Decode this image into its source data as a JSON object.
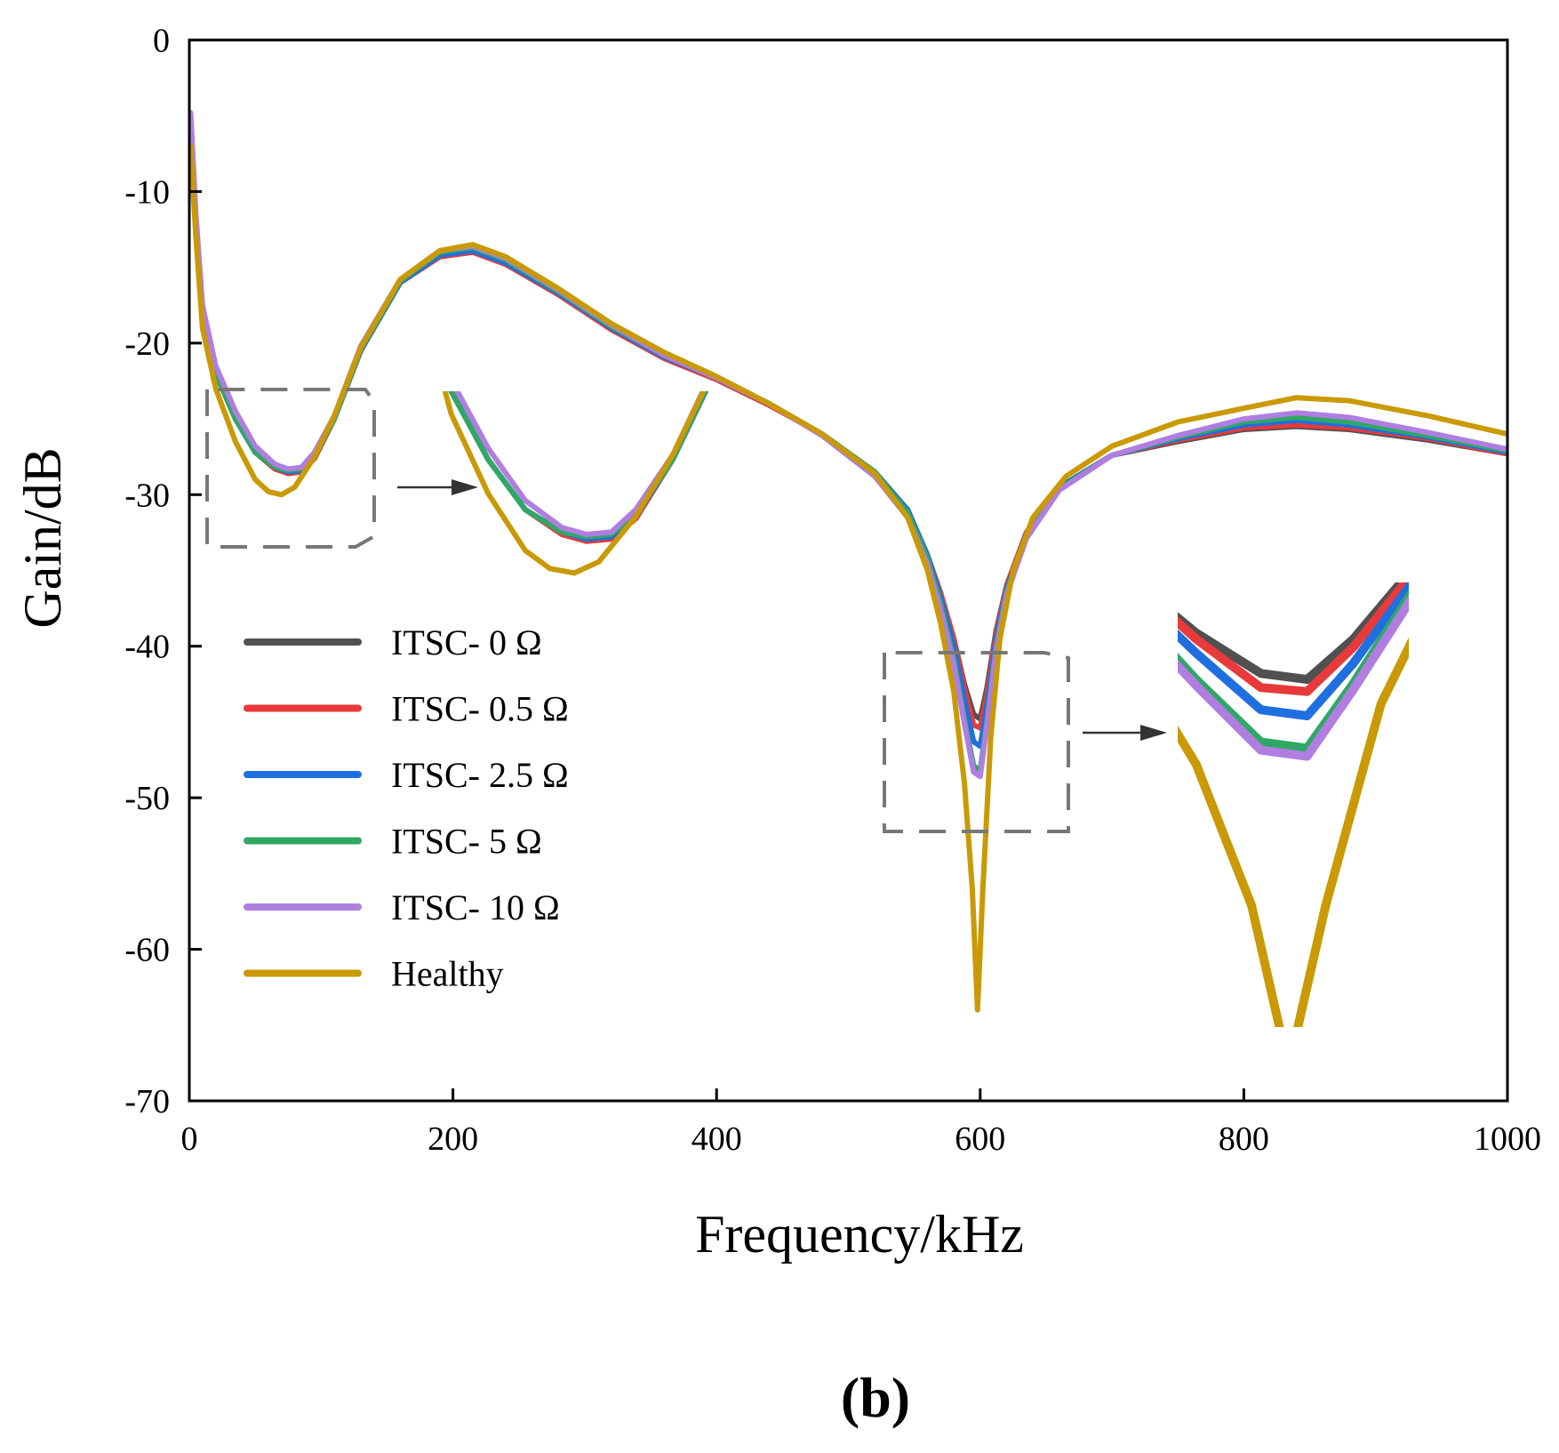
{
  "chart_data": {
    "type": "line",
    "title": "",
    "xlabel": "Frequency/kHz",
    "ylabel": "Gain/dB",
    "panel_label": "(b)",
    "xlim": [
      0,
      1000
    ],
    "ylim": [
      -70,
      0
    ],
    "xticks": [
      0,
      200,
      400,
      600,
      800,
      1000
    ],
    "yticks": [
      0,
      -10,
      -20,
      -30,
      -40,
      -50,
      -60,
      -70
    ],
    "xtick_labels": [
      "0",
      "200",
      "400",
      "600",
      "800",
      "1000"
    ],
    "ytick_labels": [
      "0",
      "-10",
      "-20",
      "-30",
      "-40",
      "-50",
      "-60",
      "-70"
    ],
    "legend_position": "left",
    "grid": false,
    "series": [
      {
        "name": "ITSC- 0 Ω",
        "color": "#505050",
        "x": [
          1,
          5,
          10,
          20,
          35,
          50,
          65,
          75,
          85,
          95,
          110,
          130,
          160,
          190,
          215,
          240,
          280,
          320,
          360,
          400,
          440,
          480,
          520,
          545,
          560,
          570,
          580,
          588,
          595,
          600,
          605,
          612,
          620,
          635,
          660,
          700,
          750,
          800,
          840,
          880,
          940,
          1000
        ],
        "y": [
          -7,
          -12,
          -18,
          -22,
          -25,
          -27.2,
          -28.3,
          -28.6,
          -28.5,
          -27.6,
          -25,
          -20.5,
          -16,
          -14.3,
          -14,
          -14.8,
          -16.8,
          -19.1,
          -21,
          -22.4,
          -24.1,
          -26,
          -28.5,
          -31,
          -34,
          -36.5,
          -39.5,
          -42.5,
          -44.5,
          -44.8,
          -42.8,
          -39,
          -36,
          -32.5,
          -29.5,
          -27.4,
          -26.5,
          -25.7,
          -25.5,
          -25.7,
          -26.4,
          -27.3
        ]
      },
      {
        "name": "ITSC- 0.5 Ω",
        "color": "#e83a3a",
        "x": [
          1,
          5,
          10,
          20,
          35,
          50,
          65,
          75,
          85,
          95,
          110,
          130,
          160,
          190,
          215,
          240,
          280,
          320,
          360,
          400,
          440,
          480,
          520,
          545,
          560,
          570,
          580,
          588,
          595,
          600,
          605,
          612,
          620,
          635,
          660,
          700,
          750,
          800,
          840,
          880,
          940,
          1000
        ],
        "y": [
          -7,
          -12,
          -18,
          -22,
          -25,
          -27.2,
          -28.3,
          -28.6,
          -28.5,
          -27.6,
          -25,
          -20.5,
          -16,
          -14.3,
          -14,
          -14.8,
          -16.8,
          -19.1,
          -21,
          -22.4,
          -24.1,
          -26,
          -28.5,
          -31,
          -34,
          -36.5,
          -39.5,
          -42.8,
          -45.2,
          -45.4,
          -43.2,
          -39.2,
          -36,
          -32.5,
          -29.5,
          -27.4,
          -26.4,
          -25.6,
          -25.4,
          -25.6,
          -26.3,
          -27.3
        ]
      },
      {
        "name": "ITSC- 2.5 Ω",
        "color": "#1f6fe0",
        "x": [
          1,
          5,
          10,
          20,
          35,
          50,
          65,
          75,
          85,
          95,
          110,
          130,
          160,
          190,
          215,
          240,
          280,
          320,
          360,
          400,
          440,
          480,
          520,
          545,
          560,
          570,
          580,
          588,
          595,
          600,
          605,
          612,
          620,
          635,
          660,
          700,
          750,
          800,
          840,
          880,
          940,
          1000
        ],
        "y": [
          -6.5,
          -12,
          -18,
          -22,
          -25,
          -27.2,
          -28.2,
          -28.5,
          -28.4,
          -27.5,
          -25,
          -20.5,
          -16,
          -14.2,
          -13.9,
          -14.7,
          -16.7,
          -19,
          -20.9,
          -22.3,
          -24,
          -26,
          -28.5,
          -31,
          -34,
          -36.8,
          -40,
          -43.5,
          -46.3,
          -46.6,
          -44,
          -39.6,
          -36.2,
          -32.6,
          -29.5,
          -27.4,
          -26.3,
          -25.4,
          -25.1,
          -25.4,
          -26.2,
          -27.2
        ]
      },
      {
        "name": "ITSC- 5 Ω",
        "color": "#2fa866",
        "x": [
          1,
          5,
          10,
          20,
          35,
          50,
          65,
          75,
          85,
          95,
          110,
          130,
          160,
          190,
          215,
          240,
          280,
          320,
          360,
          400,
          440,
          480,
          520,
          545,
          560,
          570,
          580,
          588,
          595,
          600,
          605,
          612,
          620,
          635,
          660,
          700,
          750,
          800,
          840,
          880,
          940,
          1000
        ],
        "y": [
          -6,
          -12,
          -18,
          -22,
          -25,
          -27.2,
          -28.2,
          -28.4,
          -28.3,
          -27.4,
          -25,
          -20.4,
          -15.9,
          -14,
          -13.7,
          -14.5,
          -16.6,
          -18.9,
          -20.8,
          -22.3,
          -24,
          -26,
          -28.5,
          -31.2,
          -34.2,
          -37.2,
          -40.8,
          -44.8,
          -47.9,
          -48.2,
          -45,
          -40,
          -36.4,
          -32.7,
          -29.6,
          -27.4,
          -26.2,
          -25.2,
          -24.9,
          -25.2,
          -26.1,
          -27.1
        ]
      },
      {
        "name": "ITSC- 10 Ω",
        "color": "#b07ee0",
        "x": [
          1,
          5,
          10,
          20,
          35,
          50,
          65,
          75,
          85,
          95,
          110,
          130,
          160,
          190,
          215,
          240,
          280,
          320,
          360,
          400,
          440,
          480,
          520,
          545,
          560,
          570,
          580,
          588,
          595,
          600,
          605,
          612,
          620,
          635,
          660,
          700,
          750,
          800,
          840,
          880,
          940,
          1000
        ],
        "y": [
          -4.8,
          -11.5,
          -17.5,
          -21.5,
          -24.5,
          -26.8,
          -28,
          -28.3,
          -28.2,
          -27.2,
          -24.8,
          -20.2,
          -15.8,
          -13.9,
          -13.6,
          -14.4,
          -16.5,
          -18.8,
          -20.8,
          -22.3,
          -24,
          -26.1,
          -28.8,
          -31.5,
          -34.6,
          -37.6,
          -41.2,
          -45.1,
          -48.3,
          -48.6,
          -45.3,
          -40.3,
          -36.6,
          -32.9,
          -29.7,
          -27.4,
          -26.1,
          -25,
          -24.6,
          -24.9,
          -25.9,
          -27
        ]
      },
      {
        "name": "Healthy",
        "color": "#c99a06",
        "x": [
          1,
          5,
          10,
          20,
          35,
          50,
          60,
          70,
          80,
          95,
          110,
          130,
          160,
          190,
          215,
          240,
          280,
          320,
          360,
          400,
          440,
          480,
          520,
          545,
          560,
          570,
          580,
          588,
          594,
          598,
          602,
          608,
          615,
          625,
          640,
          665,
          700,
          750,
          800,
          840,
          880,
          940,
          1000
        ],
        "y": [
          -7,
          -13,
          -19,
          -23,
          -26.5,
          -29,
          -29.8,
          -30,
          -29.5,
          -27.5,
          -24.8,
          -20.3,
          -15.8,
          -13.9,
          -13.5,
          -14.3,
          -16.4,
          -18.7,
          -20.6,
          -22.2,
          -24,
          -26,
          -28.6,
          -31.5,
          -35,
          -38.5,
          -43,
          -49,
          -56,
          -64,
          -56,
          -46,
          -39.5,
          -35,
          -31.5,
          -28.8,
          -26.8,
          -25.2,
          -24.3,
          -23.6,
          -23.8,
          -24.8,
          -26
        ]
      }
    ],
    "annotations": [
      {
        "type": "zoom-box",
        "target": "first-dip"
      },
      {
        "type": "zoom-box",
        "target": "resonance-dip"
      }
    ]
  }
}
